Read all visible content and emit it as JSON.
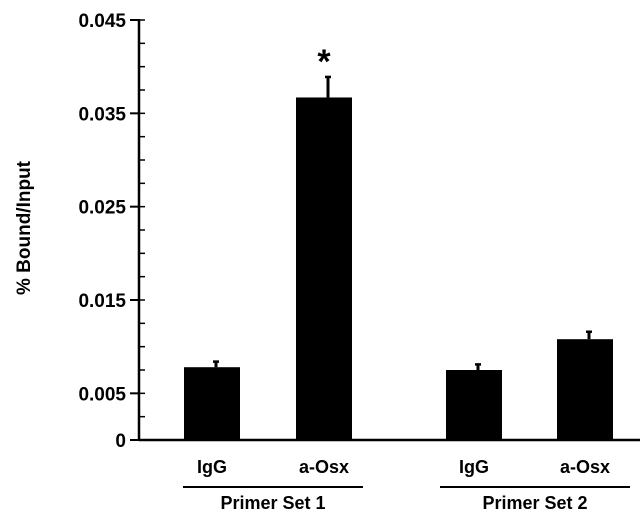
{
  "chart_data": {
    "type": "bar",
    "title": "",
    "xlabel": "",
    "ylabel": "% Bound/Input",
    "ylim": [
      0,
      0.045
    ],
    "yticks": [
      0,
      0.005,
      0.015,
      0.025,
      0.035,
      0.045
    ],
    "ytick_labels": [
      "0",
      "0.005",
      "0.015",
      "0.025",
      "0.035",
      "0.045"
    ],
    "categories": [
      "IgG",
      "a-Osx",
      "IgG",
      "a-Osx"
    ],
    "groups": [
      {
        "label": "Primer Set 1",
        "categories": [
          0,
          1
        ]
      },
      {
        "label": "Primer Set 2",
        "categories": [
          2,
          3
        ]
      }
    ],
    "values": [
      0.0078,
      0.0367,
      0.0075,
      0.0108
    ],
    "errors": [
      0.0006,
      0.0022,
      0.0006,
      0.0008
    ],
    "annotations": [
      {
        "category": 1,
        "text": "*"
      }
    ],
    "bar_color": "#000000",
    "grid": false,
    "legend": "none"
  }
}
